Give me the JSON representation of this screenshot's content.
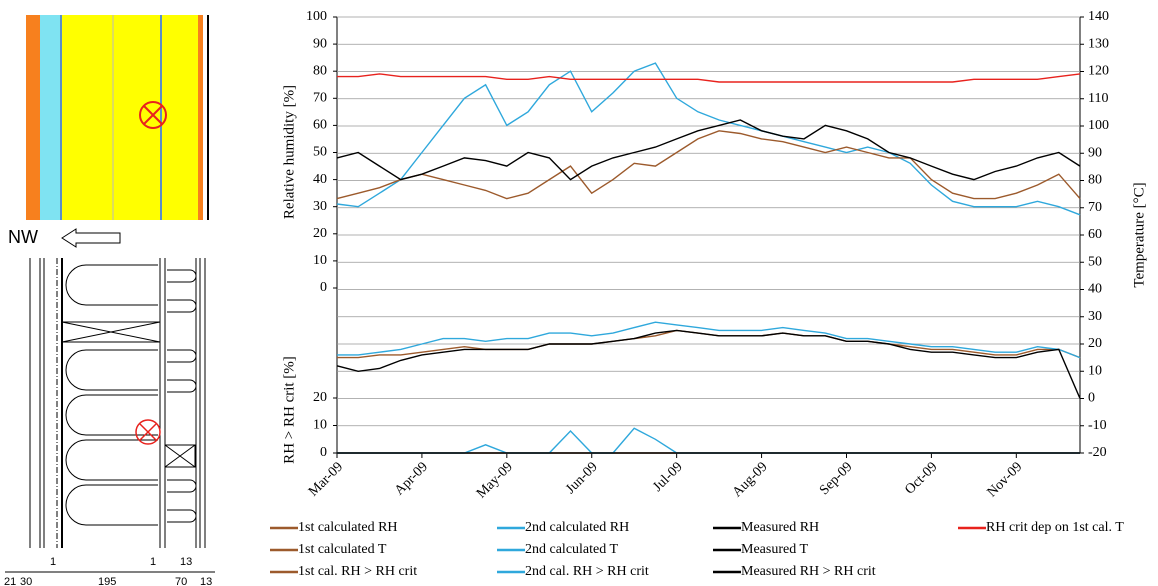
{
  "chart_data": [
    {
      "type": "line",
      "y_label": "Relative humidity [%]",
      "y2_label": "Temperature [°C]",
      "categories": [
        "Mar-09",
        null,
        null,
        null,
        "Apr-09",
        null,
        null,
        null,
        "May-09",
        null,
        null,
        null,
        "Jun-09",
        null,
        null,
        null,
        "Jul-09",
        null,
        null,
        null,
        "Aug-09",
        null,
        null,
        null,
        "Sep-09",
        null,
        null,
        null,
        "Oct-09",
        null,
        null,
        null,
        "Nov-09",
        null,
        null,
        null
      ],
      "ylim": [
        0,
        100
      ],
      "yticks": [
        0,
        10,
        20,
        30,
        40,
        50,
        60,
        70,
        80,
        90,
        100
      ],
      "y2lim": [
        -20,
        140
      ],
      "y2ticks": [
        -20,
        -10,
        0,
        10,
        20,
        30,
        40,
        50,
        60,
        70,
        80,
        90,
        100,
        110,
        120,
        130,
        140
      ],
      "grid": true,
      "series": [
        {
          "name": "1st calculated RH",
          "color": "#9c5a2c",
          "values": [
            33,
            35,
            37,
            40,
            42,
            40,
            38,
            36,
            33,
            35,
            40,
            45,
            35,
            40,
            46,
            45,
            50,
            55,
            58,
            57,
            55,
            54,
            52,
            50,
            52,
            50,
            48,
            48,
            40,
            35,
            33,
            33,
            35,
            38,
            42,
            33
          ]
        },
        {
          "name": "2nd calculated RH",
          "color": "#2fa8dc",
          "values": [
            31,
            30,
            35,
            40,
            50,
            60,
            70,
            75,
            60,
            65,
            75,
            80,
            65,
            72,
            80,
            83,
            70,
            65,
            62,
            60,
            58,
            56,
            54,
            52,
            50,
            52,
            50,
            46,
            38,
            32,
            30,
            30,
            30,
            32,
            30,
            27
          ]
        },
        {
          "name": "Measured RH",
          "color": "#000000",
          "values": [
            48,
            50,
            45,
            40,
            42,
            45,
            48,
            47,
            45,
            50,
            48,
            40,
            45,
            48,
            50,
            52,
            55,
            58,
            60,
            62,
            58,
            56,
            55,
            60,
            58,
            55,
            50,
            48,
            45,
            42,
            40,
            43,
            45,
            48,
            50,
            45
          ]
        },
        {
          "name": "RH crit dep on 1st cal. T",
          "color": "#e8221d",
          "values": [
            78,
            78,
            79,
            78,
            78,
            78,
            78,
            78,
            77,
            77,
            78,
            77,
            77,
            77,
            77,
            77,
            77,
            77,
            76,
            76,
            76,
            76,
            76,
            76,
            76,
            76,
            76,
            76,
            76,
            76,
            77,
            77,
            77,
            77,
            78,
            79
          ]
        },
        {
          "name": "1st calculated T",
          "color": "#9c5a2c",
          "axis": "y2",
          "values": [
            15,
            15,
            16,
            16,
            17,
            18,
            19,
            18,
            18,
            18,
            20,
            20,
            20,
            21,
            22,
            23,
            25,
            24,
            23,
            23,
            23,
            24,
            23,
            23,
            21,
            21,
            20,
            19,
            18,
            18,
            17,
            16,
            16,
            18,
            18,
            15
          ]
        },
        {
          "name": "2nd calculated T",
          "color": "#2fa8dc",
          "axis": "y2",
          "values": [
            16,
            16,
            17,
            18,
            20,
            22,
            22,
            21,
            22,
            22,
            24,
            24,
            23,
            24,
            26,
            28,
            27,
            26,
            25,
            25,
            25,
            26,
            25,
            24,
            22,
            22,
            21,
            20,
            19,
            19,
            18,
            17,
            17,
            19,
            18,
            15
          ]
        },
        {
          "name": "Measured T",
          "color": "#000000",
          "axis": "y2",
          "values": [
            12,
            10,
            11,
            14,
            16,
            17,
            18,
            18,
            18,
            18,
            20,
            20,
            20,
            21,
            22,
            24,
            25,
            24,
            23,
            23,
            23,
            24,
            23,
            23,
            21,
            21,
            20,
            18,
            17,
            17,
            16,
            15,
            15,
            17,
            18,
            0
          ]
        }
      ]
    },
    {
      "type": "line",
      "y_label": "RH > RH crit [%]",
      "ylim": [
        0,
        20
      ],
      "yticks": [
        0,
        10,
        20
      ],
      "series": [
        {
          "name": "1st cal. RH > RH crit",
          "color": "#9c5a2c",
          "values": [
            0,
            0,
            0,
            0,
            0,
            0,
            0,
            0,
            0,
            0,
            0,
            0,
            0,
            0,
            0,
            0,
            0,
            0,
            0,
            0,
            0,
            0,
            0,
            0,
            0,
            0,
            0,
            0,
            0,
            0,
            0,
            0,
            0,
            0,
            0,
            0
          ]
        },
        {
          "name": "2nd cal. RH > RH crit",
          "color": "#2fa8dc",
          "values": [
            0,
            0,
            0,
            0,
            0,
            0,
            0,
            3,
            0,
            0,
            0,
            8,
            0,
            0,
            9,
            5,
            0,
            0,
            0,
            0,
            0,
            0,
            0,
            0,
            0,
            0,
            0,
            0,
            0,
            0,
            0,
            0,
            0,
            0,
            0,
            0
          ]
        },
        {
          "name": "Measured RH > RH crit",
          "color": "#000000",
          "values": [
            0,
            0,
            0,
            0,
            0,
            0,
            0,
            0,
            0,
            0,
            0,
            0,
            0,
            0,
            0,
            0,
            0,
            0,
            0,
            0,
            0,
            0,
            0,
            0,
            0,
            0,
            0,
            0,
            0,
            0,
            0,
            0,
            0,
            0,
            0,
            0
          ]
        }
      ]
    }
  ],
  "diagram": {
    "orientation": "NW",
    "dimensions": [
      "1",
      "1",
      "13",
      "21",
      "30",
      "195",
      "70",
      "13"
    ]
  }
}
